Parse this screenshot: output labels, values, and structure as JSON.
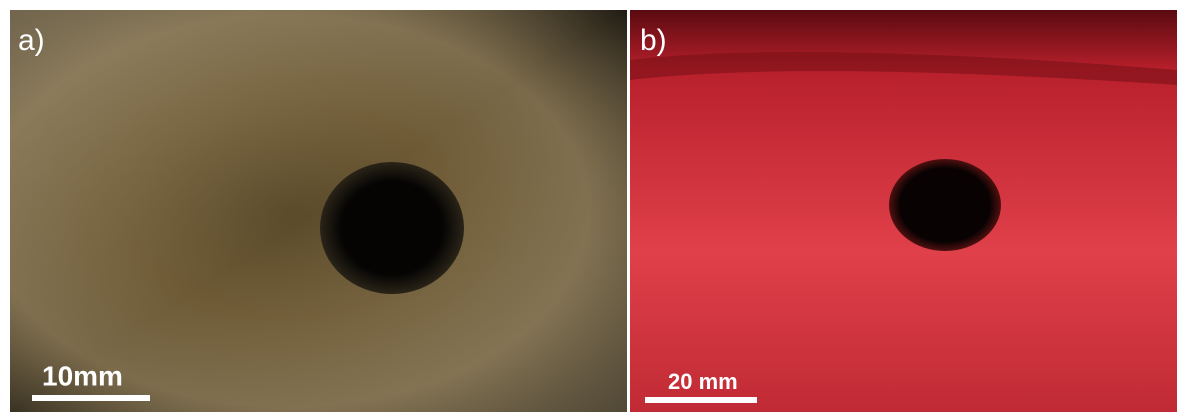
{
  "panels": [
    {
      "label": "a)",
      "scale_label": "10mm"
    },
    {
      "label": "b)",
      "scale_label": "20 mm"
    }
  ]
}
